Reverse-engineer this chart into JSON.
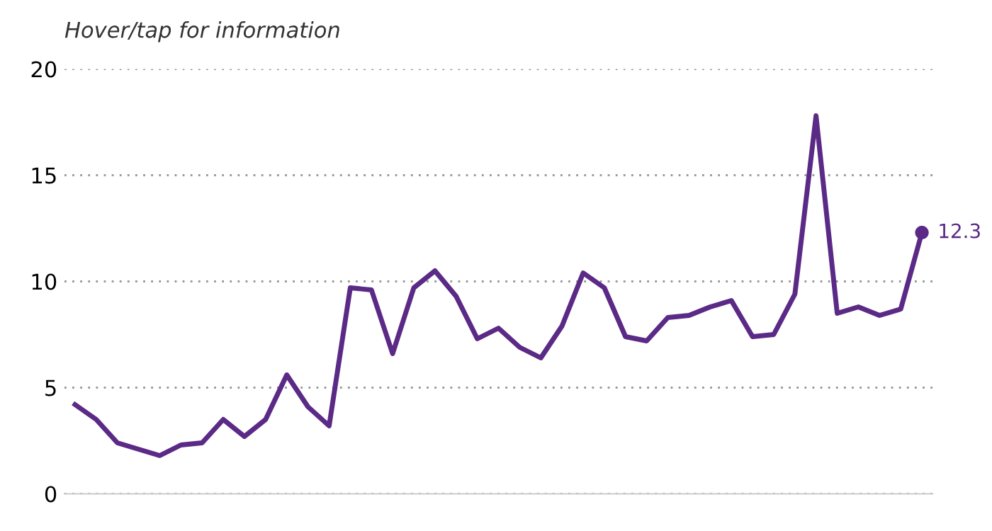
{
  "chart_data": {
    "type": "line",
    "subtitle": "Hover/tap for information",
    "categories": [
      null,
      null,
      null,
      null,
      null,
      null,
      null,
      null,
      null,
      null,
      null,
      null,
      null,
      null,
      null,
      null,
      null,
      null,
      null,
      null,
      null,
      null,
      null,
      null,
      null,
      null,
      null,
      null,
      null,
      null,
      null,
      null,
      null,
      null,
      null,
      null,
      null,
      null,
      null,
      null,
      null
    ],
    "series": [
      {
        "color": "#5b2a86",
        "values": [
          4.2,
          3.5,
          2.4,
          2.1,
          1.8,
          2.3,
          2.4,
          3.5,
          2.7,
          3.5,
          5.6,
          4.1,
          3.2,
          9.7,
          9.6,
          6.6,
          9.7,
          10.5,
          9.3,
          7.3,
          7.8,
          6.9,
          6.4,
          7.9,
          10.4,
          9.7,
          7.4,
          7.2,
          8.3,
          8.4,
          8.8,
          9.1,
          7.4,
          7.5,
          9.4,
          17.8,
          8.5,
          8.8,
          8.4,
          8.7,
          12.3
        ],
        "value_labels": [
          null,
          null,
          null,
          null,
          null,
          null,
          null,
          null,
          null,
          null,
          null,
          null,
          null,
          null,
          null,
          null,
          null,
          null,
          null,
          null,
          null,
          null,
          null,
          null,
          null,
          null,
          null,
          null,
          null,
          null,
          null,
          null,
          null,
          null,
          null,
          null,
          null,
          null,
          null,
          null,
          "12.3"
        ]
      }
    ],
    "ylim": [
      0,
      20
    ],
    "yticks": [
      0,
      5,
      10,
      15,
      20
    ],
    "grid": "y",
    "line_style": "solid"
  }
}
